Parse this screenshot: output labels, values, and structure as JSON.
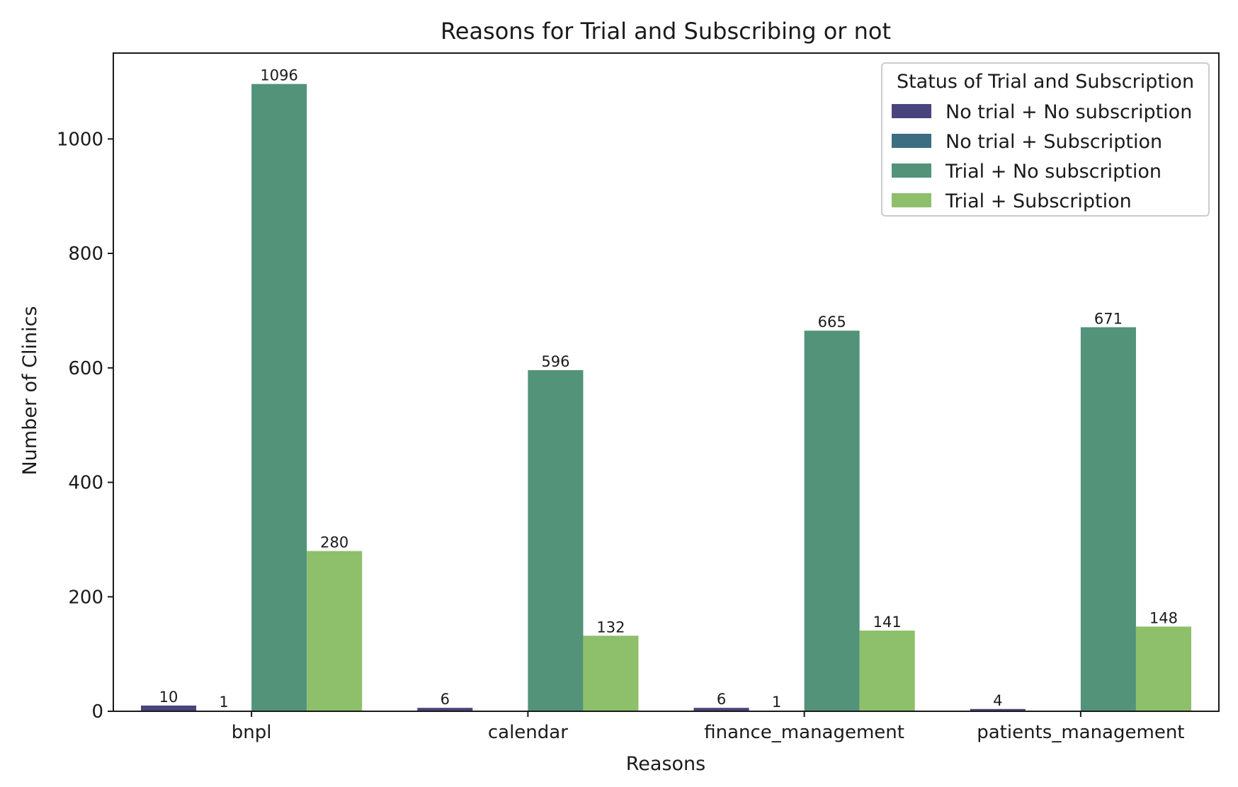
{
  "chart_data": {
    "type": "bar",
    "title": "Reasons for Trial and Subscribing or not",
    "xlabel": "Reasons",
    "ylabel": "Number of Clinics",
    "categories": [
      "bnpl",
      "calendar",
      "finance_management",
      "patients_management"
    ],
    "ylim": [
      0,
      1150
    ],
    "yticks": [
      0,
      200,
      400,
      600,
      800,
      1000
    ],
    "series": [
      {
        "name": "No trial + No subscription",
        "color": "#48457c",
        "values": [
          10,
          6,
          6,
          4
        ]
      },
      {
        "name": "No trial + Subscription",
        "color": "#3b6e80",
        "values": [
          1,
          null,
          1,
          null
        ]
      },
      {
        "name": "Trial + No subscription",
        "color": "#52937a",
        "values": [
          1096,
          596,
          665,
          671
        ]
      },
      {
        "name": "Trial + Subscription",
        "color": "#8ebf6a",
        "values": [
          280,
          132,
          141,
          148
        ]
      }
    ],
    "legend": {
      "title": "Status of Trial and Subscription",
      "position": "top-right"
    },
    "grid": false
  }
}
